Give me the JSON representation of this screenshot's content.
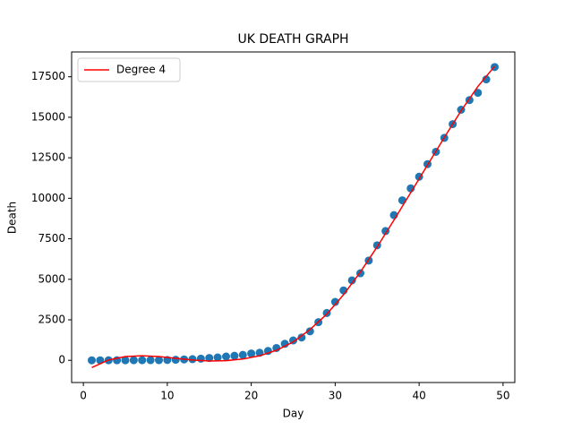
{
  "chart_data": {
    "type": "scatter",
    "title": "UK DEATH GRAPH",
    "x_label": "Day",
    "y_label": "Death",
    "x": [
      1,
      2,
      3,
      4,
      5,
      6,
      7,
      8,
      9,
      10,
      11,
      12,
      13,
      14,
      15,
      16,
      17,
      18,
      19,
      20,
      21,
      22,
      23,
      24,
      25,
      26,
      27,
      28,
      29,
      30,
      31,
      32,
      33,
      34,
      35,
      36,
      37,
      38,
      39,
      40,
      41,
      42,
      43,
      44,
      45,
      46,
      47,
      48,
      49
    ],
    "values": [
      0,
      1,
      2,
      3,
      4,
      6,
      8,
      10,
      11,
      21,
      35,
      55,
      71,
      104,
      144,
      177,
      233,
      281,
      335,
      422,
      465,
      578,
      759,
      1019,
      1228,
      1408,
      1789,
      2352,
      2921,
      3605,
      4313,
      4934,
      5373,
      6159,
      7097,
      7978,
      8958,
      9875,
      10612,
      11329,
      12107,
      12868,
      13729,
      14576,
      15464,
      16060,
      16509,
      17337,
      18100
    ],
    "color": "#1f77b4",
    "fit": {
      "name": "Degree 4",
      "color": "#ff0000",
      "x": [
        1,
        3,
        5,
        7,
        9,
        11,
        13,
        15,
        17,
        19,
        21,
        23,
        25,
        27,
        29,
        31,
        33,
        35,
        37,
        39,
        41,
        43,
        45,
        47,
        49
      ],
      "values": [
        -450,
        20,
        230,
        280,
        230,
        120,
        20,
        -40,
        -20,
        80,
        280,
        620,
        1130,
        1900,
        2850,
        4050,
        5450,
        7000,
        8650,
        10350,
        12050,
        13750,
        15400,
        16900,
        18150
      ]
    },
    "legend": "upper left",
    "xlim": [
      -1.4,
      51.4
    ],
    "xticks": [
      0,
      10,
      20,
      30,
      40,
      50
    ],
    "ylim": [
      -1370,
      19030
    ],
    "yticks": [
      0,
      2500,
      5000,
      7500,
      10000,
      12500,
      15000,
      17500
    ]
  }
}
